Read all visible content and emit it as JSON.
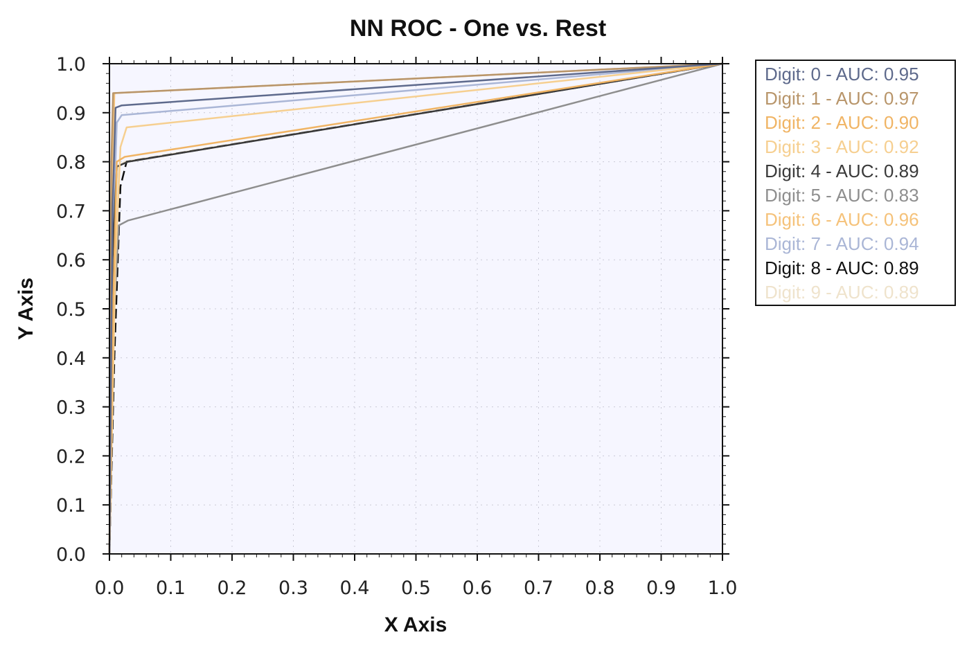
{
  "chart_data": {
    "type": "line",
    "title": "NN ROC - One vs. Rest",
    "xlabel": "X Axis",
    "ylabel": "Y Axis",
    "xlim": [
      0.0,
      1.0
    ],
    "ylim": [
      0.0,
      1.0
    ],
    "x_ticks": [
      "0.0",
      "0.1",
      "0.2",
      "0.3",
      "0.4",
      "0.5",
      "0.6",
      "0.7",
      "0.8",
      "0.9",
      "1.0"
    ],
    "y_ticks": [
      "0.0",
      "0.1",
      "0.2",
      "0.3",
      "0.4",
      "0.5",
      "0.6",
      "0.7",
      "0.8",
      "0.9",
      "1.0"
    ],
    "grid": true,
    "legend_position": "right",
    "series": [
      {
        "name": "Digit: 0 - AUC: 0.95",
        "color": "#5e6a8c",
        "x": [
          0.0,
          0.005,
          0.01,
          0.02,
          1.0
        ],
        "y": [
          0.0,
          0.7,
          0.91,
          0.915,
          1.0
        ]
      },
      {
        "name": "Digit: 1 - AUC: 0.97",
        "color": "#b8956a",
        "x": [
          0.0,
          0.003,
          0.006,
          1.0
        ],
        "y": [
          0.0,
          0.8,
          0.94,
          1.0
        ]
      },
      {
        "name": "Digit: 2 - AUC: 0.90",
        "color": "#f0b464",
        "x": [
          0.0,
          0.006,
          0.012,
          0.025,
          1.0
        ],
        "y": [
          0.0,
          0.5,
          0.8,
          0.81,
          1.0
        ]
      },
      {
        "name": "Digit: 3 - AUC: 0.92",
        "color": "#f6cf90",
        "x": [
          0.0,
          0.01,
          0.018,
          0.028,
          1.0
        ],
        "y": [
          0.0,
          0.6,
          0.83,
          0.87,
          1.0
        ]
      },
      {
        "name": "Digit: 4 - AUC: 0.89",
        "color": "#3a3a3a",
        "x": [
          0.0,
          0.005,
          0.012,
          0.03,
          1.0
        ],
        "y": [
          0.0,
          0.6,
          0.79,
          0.8,
          1.0
        ]
      },
      {
        "name": "Digit: 5 - AUC: 0.83",
        "color": "#8e8e8e",
        "x": [
          0.0,
          0.008,
          0.015,
          0.03,
          1.0
        ],
        "y": [
          0.0,
          0.5,
          0.67,
          0.68,
          1.0
        ]
      },
      {
        "name": "Digit: 6 - AUC: 0.96",
        "color": "#f5c27a",
        "x": [
          0.0,
          0.004,
          0.008,
          1.0
        ],
        "y": [
          0.0,
          0.7,
          0.94,
          1.0
        ]
      },
      {
        "name": "Digit: 7 - AUC: 0.94",
        "color": "#aab6d6",
        "x": [
          0.0,
          0.006,
          0.012,
          0.02,
          1.0
        ],
        "y": [
          0.0,
          0.65,
          0.88,
          0.895,
          1.0
        ]
      },
      {
        "name": "Digit: 8 - AUC: 0.89",
        "color": "#111111",
        "x": [
          0.0,
          0.008,
          0.018,
          0.028,
          1.0
        ],
        "y": [
          0.0,
          0.4,
          0.75,
          0.8,
          1.0
        ]
      },
      {
        "name": "Digit: 9 - AUC: 0.89",
        "color": "#efe3cc",
        "x": [
          0.0,
          0.006,
          0.014,
          0.025,
          1.0
        ],
        "y": [
          0.0,
          0.6,
          0.79,
          0.8,
          1.0
        ]
      }
    ]
  }
}
